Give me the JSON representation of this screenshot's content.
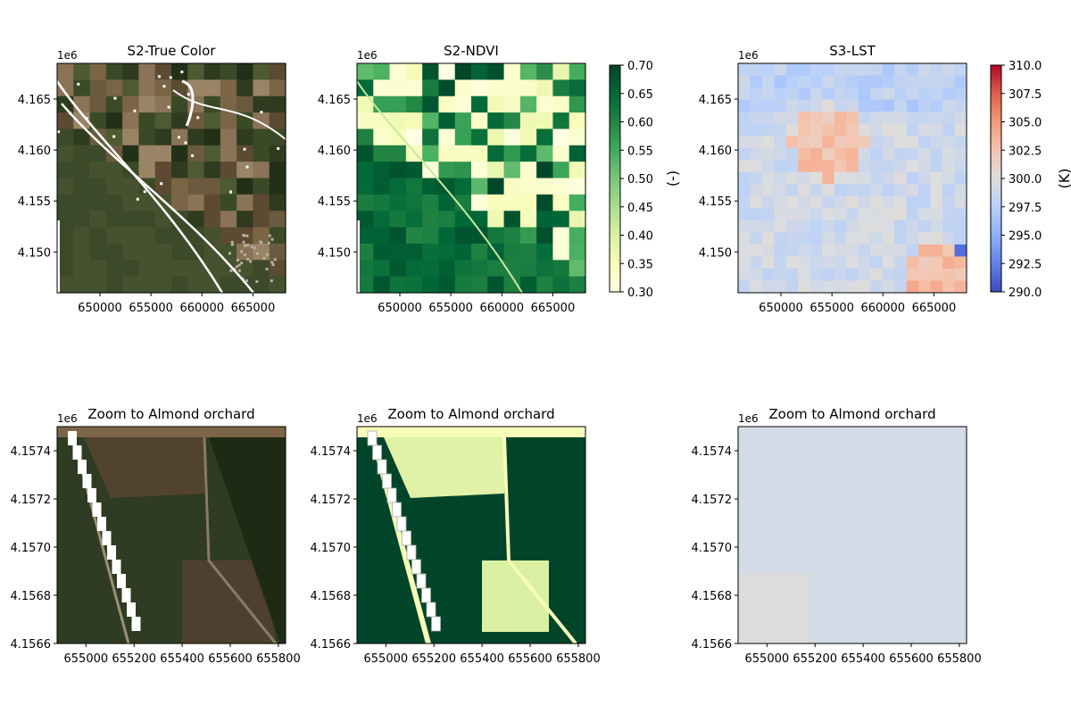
{
  "figure": {
    "panels": [
      {
        "id": "true_color",
        "title": "S2-True Color",
        "offset_label": "1e6",
        "kind": "true_color",
        "x_ticks": [
          "650000",
          "655000",
          "660000",
          "665000"
        ],
        "y_ticks": [
          "4.165",
          "4.160",
          "4.155",
          "4.150"
        ]
      },
      {
        "id": "ndvi",
        "title": "S2-NDVI",
        "offset_label": "1e6",
        "kind": "ndvi",
        "x_ticks": [
          "650000",
          "655000",
          "660000",
          "665000"
        ],
        "y_ticks": [
          "4.165",
          "4.160",
          "4.155",
          "4.150"
        ]
      },
      {
        "id": "lst",
        "title": "S3-LST",
        "offset_label": "1e6",
        "kind": "lst",
        "x_ticks": [
          "650000",
          "655000",
          "660000",
          "665000"
        ],
        "y_ticks": [
          "4.165",
          "4.160",
          "4.155",
          "4.150"
        ]
      },
      {
        "id": "zoom_true_color",
        "title": "Zoom to Almond orchard",
        "offset_label": "1e6",
        "kind": "zoom_true_color",
        "x_ticks": [
          "655000",
          "655200",
          "655400",
          "655600",
          "655800"
        ],
        "y_ticks": [
          "4.1574",
          "4.1572",
          "4.1570",
          "4.1568",
          "4.1566"
        ]
      },
      {
        "id": "zoom_ndvi",
        "title": "Zoom to Almond orchard",
        "offset_label": "1e6",
        "kind": "zoom_ndvi",
        "x_ticks": [
          "655000",
          "655200",
          "655400",
          "655600",
          "655800"
        ],
        "y_ticks": [
          "4.1574",
          "4.1572",
          "4.1570",
          "4.1568",
          "4.1566"
        ]
      },
      {
        "id": "zoom_lst",
        "title": "Zoom to Almond orchard",
        "offset_label": "1e6",
        "kind": "zoom_lst",
        "x_ticks": [
          "655000",
          "655200",
          "655400",
          "655600",
          "655800"
        ],
        "y_ticks": [
          "4.1574",
          "4.1572",
          "4.1570",
          "4.1568",
          "4.1566"
        ]
      }
    ],
    "colorbars": [
      {
        "id": "ndvi_cbar",
        "label": "(-)",
        "colormap": "YlGn",
        "ticks": [
          "0.70",
          "0.65",
          "0.60",
          "0.55",
          "0.50",
          "0.45",
          "0.40",
          "0.35",
          "0.30"
        ]
      },
      {
        "id": "lst_cbar",
        "label": "(K)",
        "colormap": "coolwarm",
        "ticks": [
          "310.0",
          "307.5",
          "305.0",
          "302.5",
          "300.0",
          "297.5",
          "295.0",
          "292.5",
          "290.0"
        ]
      }
    ]
  },
  "chart_data": [
    {
      "type": "heatmap",
      "title": "S2-True Color",
      "xlim": [
        645800,
        668200
      ],
      "ylim": [
        4146000,
        4168500
      ],
      "x_ticks": [
        650000,
        655000,
        660000,
        665000
      ],
      "y_ticks": [
        4.165,
        4.16,
        4.155,
        4.15
      ],
      "y_offset": "1e6"
    },
    {
      "type": "heatmap",
      "title": "S2-NDVI",
      "xlim": [
        645800,
        668200
      ],
      "ylim": [
        4146000,
        4168500
      ],
      "x_ticks": [
        650000,
        655000,
        660000,
        665000
      ],
      "y_ticks": [
        4.165,
        4.16,
        4.155,
        4.15
      ],
      "y_offset": "1e6",
      "colorbar": {
        "label": "(-)",
        "range": [
          0.3,
          0.7
        ],
        "colormap": "YlGn"
      }
    },
    {
      "type": "heatmap",
      "title": "S3-LST",
      "xlim": [
        645800,
        668200
      ],
      "ylim": [
        4146000,
        4168500
      ],
      "x_ticks": [
        650000,
        655000,
        660000,
        665000
      ],
      "y_ticks": [
        4.165,
        4.16,
        4.155,
        4.15
      ],
      "y_offset": "1e6",
      "colorbar": {
        "label": "(K)",
        "range": [
          290.0,
          310.0
        ],
        "colormap": "coolwarm"
      }
    },
    {
      "type": "heatmap",
      "title": "Zoom to Almond orchard",
      "xlim": [
        654880,
        655830
      ],
      "ylim": [
        4156600,
        4157500
      ],
      "x_ticks": [
        655000,
        655200,
        655400,
        655600,
        655800
      ],
      "y_ticks": [
        4.1574,
        4.1572,
        4.157,
        4.1568,
        4.1566
      ],
      "y_offset": "1e6"
    },
    {
      "type": "heatmap",
      "title": "Zoom to Almond orchard",
      "xlim": [
        654880,
        655830
      ],
      "ylim": [
        4156600,
        4157500
      ],
      "x_ticks": [
        655000,
        655200,
        655400,
        655600,
        655800
      ],
      "y_ticks": [
        4.1574,
        4.1572,
        4.157,
        4.1568,
        4.1566
      ],
      "y_offset": "1e6"
    },
    {
      "type": "heatmap",
      "title": "Zoom to Almond orchard",
      "xlim": [
        654880,
        655830
      ],
      "ylim": [
        4156600,
        4157500
      ],
      "x_ticks": [
        655000,
        655200,
        655400,
        655600,
        655800
      ],
      "y_ticks": [
        4.1574,
        4.1572,
        4.157,
        4.1568,
        4.1566
      ],
      "y_offset": "1e6"
    }
  ]
}
